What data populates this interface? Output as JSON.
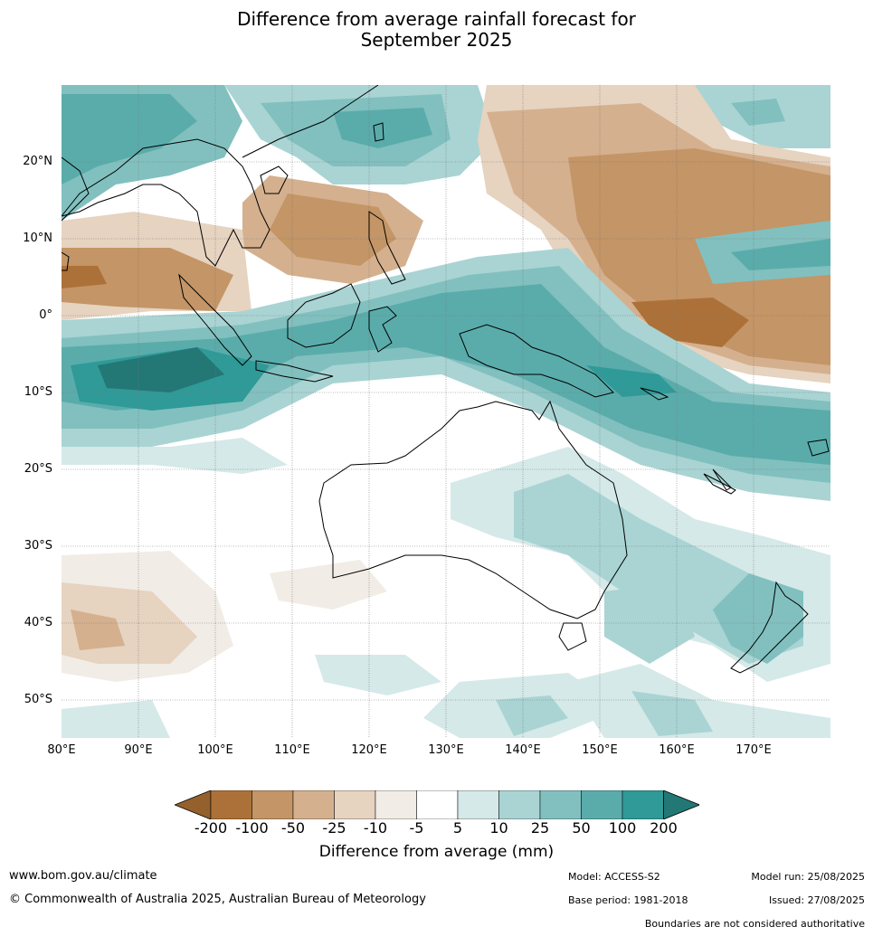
{
  "title_line1": "Difference from average rainfall forecast for",
  "title_line2": "September 2025",
  "lat_labels": [
    "20°N",
    "10°N",
    "0°",
    "10°S",
    "20°S",
    "30°S",
    "40°S",
    "50°S"
  ],
  "lon_labels": [
    "80°E",
    "90°E",
    "100°E",
    "110°E",
    "120°E",
    "130°E",
    "140°E",
    "150°E",
    "160°E",
    "170°E"
  ],
  "colorbar": {
    "labels": [
      "-200",
      "-100",
      "-50",
      "-25",
      "-10",
      "-5",
      "5",
      "10",
      "25",
      "50",
      "100",
      "200"
    ],
    "colors": [
      "#ac7139",
      "#c49566",
      "#d4b08e",
      "#e6d3c0",
      "#f2ece6",
      "#ffffff",
      "#d4e9e8",
      "#a9d4d3",
      "#81c0bf",
      "#5aacab",
      "#2f9a98"
    ],
    "low_extend_color": "#94602c",
    "high_extend_color": "#237775",
    "title": "Difference from average (mm)"
  },
  "footer": {
    "website": "www.bom.gov.au/climate",
    "copyright": "© Commonwealth of Australia 2025, Australian Bureau of Meteorology",
    "model": "Model: ACCESS-S2",
    "base_period": "Base period: 1981-2018",
    "model_run": "Model run: 25/08/2025",
    "issued": "Issued: 27/08/2025",
    "boundaries_note": "Boundaries are not considered authoritative"
  }
}
